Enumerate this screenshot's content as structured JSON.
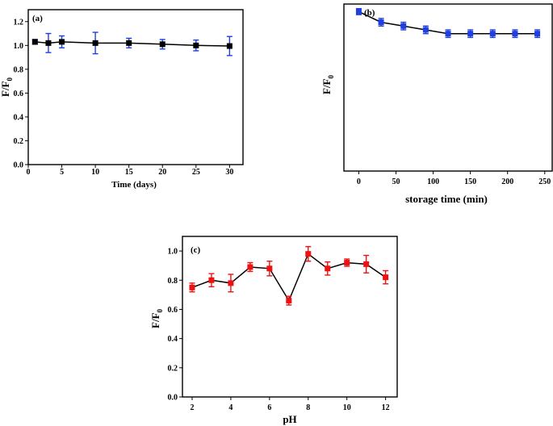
{
  "chart_data": [
    {
      "type": "line",
      "panel_label": "(a)",
      "xlabel": "Time (days)",
      "ylabel_main": "F/F",
      "ylabel_sub": "0",
      "xlim": [
        0,
        32
      ],
      "ylim": [
        0,
        1.3
      ],
      "xticks": [
        0,
        5,
        10,
        15,
        20,
        25,
        30
      ],
      "yticks": [
        0.0,
        0.2,
        0.4,
        0.6,
        0.8,
        1.0,
        1.2
      ],
      "ytick_labels": [
        "0.0",
        "0.2",
        "0.4",
        "0.6",
        "0.8",
        "1.0",
        "1.2"
      ],
      "show_yticks": true,
      "marker_color": "#000000",
      "error_color": "#1f3fe0",
      "x": [
        1,
        3,
        5,
        10,
        15,
        20,
        25,
        30
      ],
      "y": [
        1.03,
        1.02,
        1.03,
        1.02,
        1.02,
        1.01,
        1.0,
        0.995
      ],
      "err": [
        0.02,
        0.08,
        0.05,
        0.09,
        0.04,
        0.04,
        0.045,
        0.08
      ]
    },
    {
      "type": "line",
      "panel_label": "(b)",
      "xlabel": "storage time (min)",
      "ylabel_main": "F/F",
      "ylabel_sub": "0",
      "xlim": [
        -20,
        260
      ],
      "ylim": [
        0,
        1.1
      ],
      "xticks": [
        0,
        50,
        100,
        150,
        200,
        250
      ],
      "yticks": [],
      "ytick_labels": [],
      "show_yticks": false,
      "marker_color": "#1f3fe0",
      "error_color": "#1f3fe0",
      "x": [
        0,
        30,
        60,
        90,
        120,
        150,
        180,
        210,
        240
      ],
      "y": [
        1.05,
        0.98,
        0.955,
        0.93,
        0.905,
        0.905,
        0.905,
        0.905,
        0.905
      ],
      "err": [
        0.02,
        0.025,
        0.025,
        0.025,
        0.025,
        0.025,
        0.025,
        0.025,
        0.025
      ]
    },
    {
      "type": "line",
      "panel_label": "(c)",
      "xlabel": "pH",
      "ylabel_main": "F/F",
      "ylabel_sub": "0",
      "xlim": [
        1.5,
        12.6
      ],
      "ylim": [
        0,
        1.1
      ],
      "xticks": [
        2,
        4,
        6,
        8,
        10,
        12
      ],
      "yticks": [
        0.0,
        0.2,
        0.4,
        0.6,
        0.8,
        1.0
      ],
      "ytick_labels": [
        "0.0",
        "0.2",
        "0.4",
        "0.6",
        "0.8",
        "1.0"
      ],
      "show_yticks": true,
      "marker_color": "#ee1111",
      "error_color": "#ee1111",
      "x": [
        2,
        3,
        4,
        5,
        6,
        7,
        8,
        9,
        10,
        11,
        12
      ],
      "y": [
        0.75,
        0.8,
        0.78,
        0.89,
        0.88,
        0.66,
        0.98,
        0.88,
        0.92,
        0.91,
        0.82
      ],
      "err": [
        0.03,
        0.045,
        0.06,
        0.03,
        0.05,
        0.03,
        0.05,
        0.045,
        0.025,
        0.06,
        0.045
      ]
    }
  ]
}
